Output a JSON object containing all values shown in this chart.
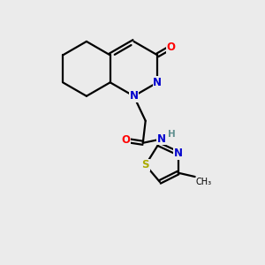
{
  "bg_color": "#ebebeb",
  "bond_color": "#000000",
  "N_color": "#0000cd",
  "O_color": "#ff0000",
  "S_color": "#aaaa00",
  "H_color": "#5f8f8f",
  "linewidth": 1.6,
  "figsize": [
    3.0,
    3.0
  ],
  "dpi": 100,
  "xlim": [
    0,
    10
  ],
  "ylim": [
    0,
    10
  ]
}
